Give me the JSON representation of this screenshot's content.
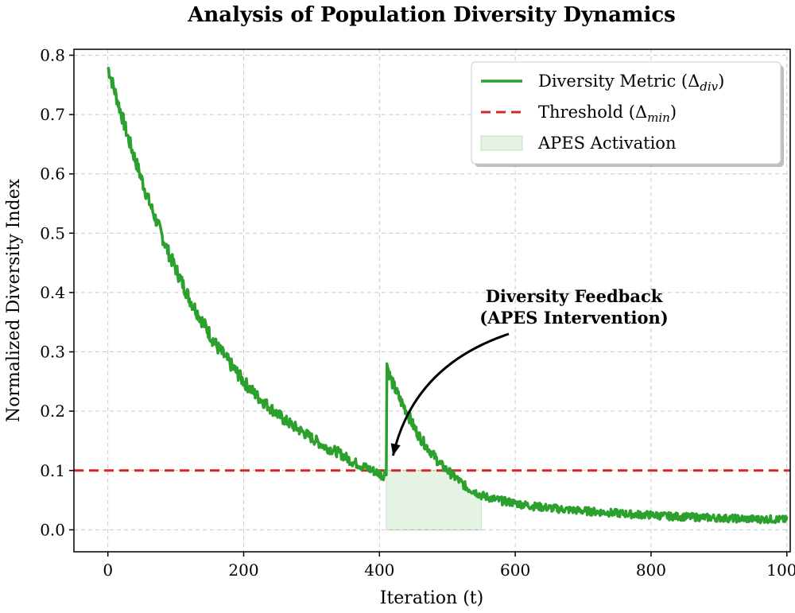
{
  "chart_data": {
    "type": "line",
    "title": "Analysis of Population Diversity Dynamics",
    "xlabel": "Iteration (t)",
    "ylabel": "Normalized Diversity Index",
    "xlim": [
      -50,
      1005
    ],
    "ylim": [
      -0.037,
      0.81
    ],
    "x_ticks": [
      "0",
      "200",
      "400",
      "600",
      "800",
      "1000"
    ],
    "y_ticks": [
      "0.0",
      "0.1",
      "0.2",
      "0.3",
      "0.4",
      "0.5",
      "0.6",
      "0.7",
      "0.8"
    ],
    "grid": true,
    "legend_position": "top-right",
    "series": [
      {
        "name": "Diversity Metric (Δdiv)",
        "legend_label": {
          "main": "Diversity Metric (Δ",
          "sub": "div",
          "end": ")"
        },
        "style": "solid",
        "color": "#2ca02c",
        "x": [
          0,
          10,
          20,
          30,
          40,
          50,
          60,
          70,
          80,
          90,
          100,
          110,
          120,
          130,
          140,
          150,
          160,
          170,
          180,
          190,
          200,
          220,
          240,
          260,
          280,
          300,
          320,
          340,
          360,
          380,
          400,
          405,
          410,
          411,
          415,
          420,
          430,
          440,
          450,
          460,
          470,
          480,
          490,
          500,
          510,
          520,
          530,
          540,
          550,
          575,
          600,
          625,
          650,
          675,
          700,
          725,
          750,
          775,
          800,
          825,
          850,
          875,
          900,
          925,
          950,
          975,
          1000
        ],
        "y": [
          0.78,
          0.74,
          0.7,
          0.66,
          0.625,
          0.59,
          0.555,
          0.525,
          0.495,
          0.465,
          0.44,
          0.415,
          0.39,
          0.37,
          0.35,
          0.33,
          0.31,
          0.295,
          0.28,
          0.265,
          0.25,
          0.225,
          0.205,
          0.185,
          0.17,
          0.155,
          0.14,
          0.13,
          0.115,
          0.105,
          0.095,
          0.09,
          0.1,
          0.28,
          0.26,
          0.245,
          0.22,
          0.2,
          0.175,
          0.155,
          0.14,
          0.125,
          0.11,
          0.1,
          0.09,
          0.08,
          0.07,
          0.065,
          0.058,
          0.05,
          0.045,
          0.04,
          0.037,
          0.034,
          0.032,
          0.03,
          0.028,
          0.026,
          0.025,
          0.023,
          0.022,
          0.021,
          0.02,
          0.019,
          0.018,
          0.018,
          0.017
        ]
      },
      {
        "name": "Threshold (Δmin)",
        "legend_label": {
          "main": "Threshold (Δ",
          "sub": "min",
          "end": ")"
        },
        "style": "dashed",
        "color": "#d62728",
        "y": 0.1
      },
      {
        "name": "APES Activation",
        "legend_label": {
          "main": "APES Activation",
          "sub": "",
          "end": ""
        },
        "style": "area",
        "color": "#2ca02c",
        "x_range": [
          410,
          550
        ]
      }
    ],
    "annotations": [
      {
        "lines": [
          "Diversity Feedback",
          "(APES Intervention)"
        ],
        "arrow_to": {
          "x": 420,
          "y": 0.125
        }
      }
    ]
  }
}
